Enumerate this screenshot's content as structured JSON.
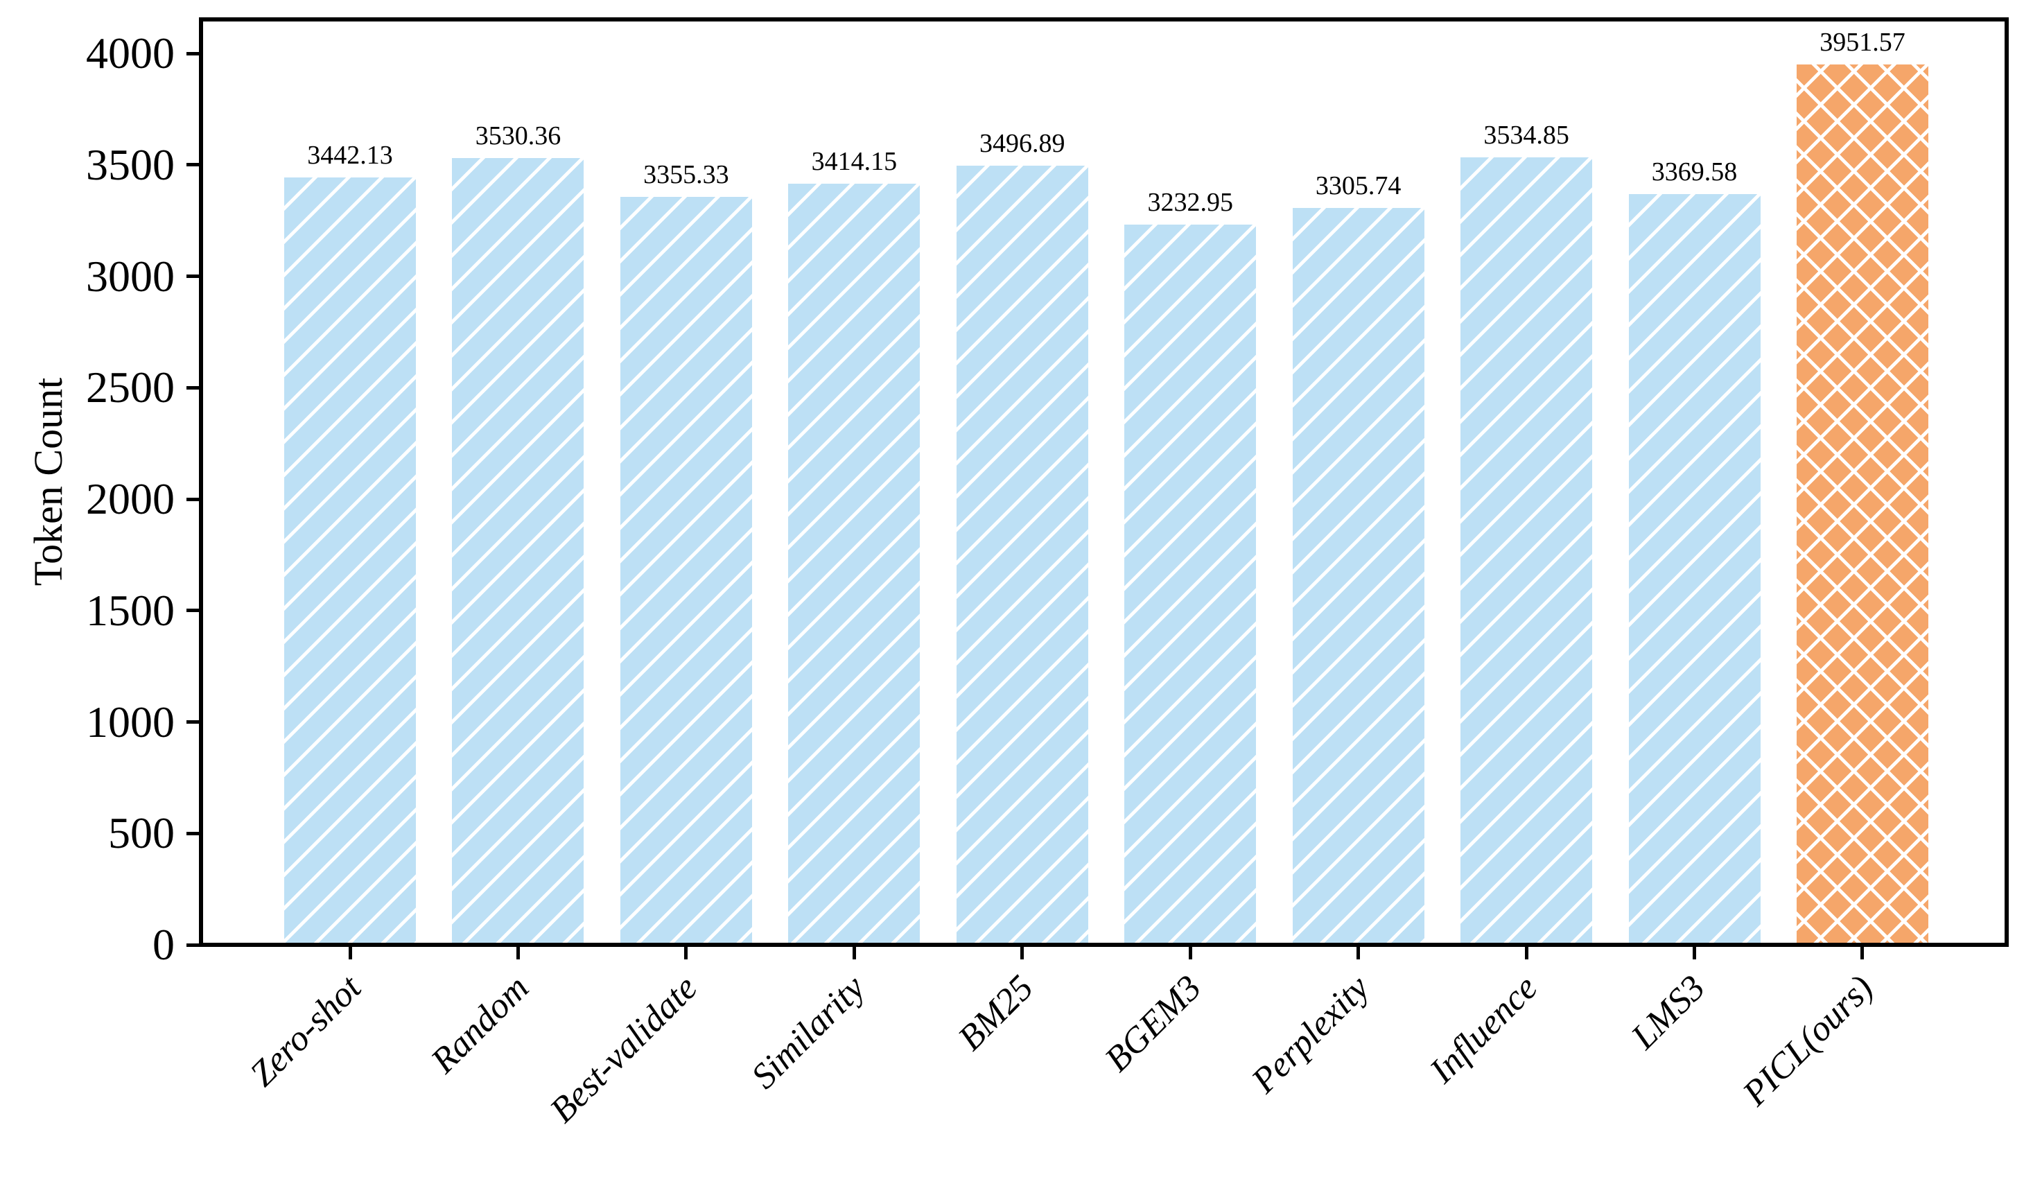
{
  "chart_data": {
    "type": "bar",
    "title": "",
    "xlabel": "",
    "ylabel": "Token Count",
    "categories": [
      "Zero-shot",
      "Random",
      "Best-validate",
      "Similarity",
      "BM25",
      "BGEM3",
      "Perplexity",
      "Influence",
      "LMS3",
      "PICL(ours)"
    ],
    "values": [
      3442.13,
      3530.36,
      3355.33,
      3414.15,
      3496.89,
      3232.95,
      3305.74,
      3534.85,
      3369.58,
      3951.57
    ],
    "value_labels": [
      "3442.13",
      "3530.36",
      "3355.33",
      "3414.15",
      "3496.89",
      "3232.95",
      "3305.74",
      "3534.85",
      "3369.58",
      "3951.57"
    ],
    "yticks": [
      0,
      500,
      1000,
      1500,
      2000,
      2500,
      3000,
      3500,
      4000
    ],
    "ylim": [
      0,
      4152
    ],
    "grid": false,
    "legend": null,
    "highlight_index": 9,
    "colors": {
      "bar_default": "#bde0f5",
      "bar_highlight": "#f5a66a",
      "hatch": "#ffffff",
      "axis": "#000000"
    },
    "hatch_styles": {
      "default": "/",
      "highlight": "x"
    }
  }
}
